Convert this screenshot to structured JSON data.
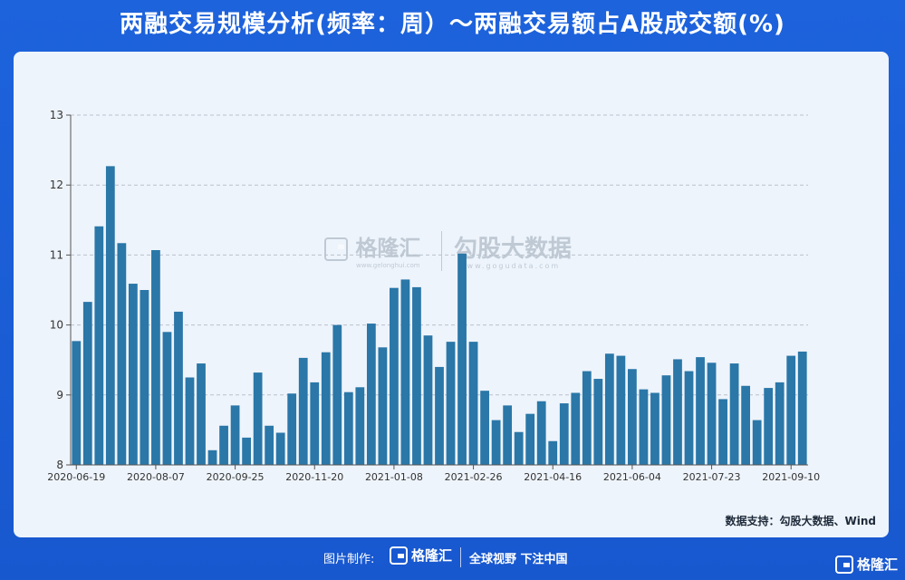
{
  "header": {
    "title": "两融交易规模分析(频率：周）～两融交易额占A股成交额(%)"
  },
  "watermark": {
    "brand1": "格隆汇",
    "brand1_sub": "www.gelonghui.com",
    "brand2": "勾股大数据",
    "brand2_sub": "www.gogudata.com"
  },
  "source": "数据支持：勾股大数据、Wind",
  "footer": {
    "made_by": "图片制作:",
    "brand": "格隆汇",
    "slogan": "全球视野 下注中国",
    "corner_brand": "格隆汇"
  },
  "colors": {
    "bar": "#2a77a8",
    "background": "#1a5fd6",
    "panel": "#eef4fb"
  },
  "chart_data": {
    "type": "bar",
    "title": "",
    "xlabel": "",
    "ylabel": "",
    "ylim": [
      8,
      13
    ],
    "yticks": [
      "8",
      "9",
      "10",
      "11",
      "12",
      "13"
    ],
    "grid": true,
    "xtick_labels": [
      "2020-06-19",
      "2020-08-07",
      "2020-09-25",
      "2020-11-20",
      "2021-01-08",
      "2021-02-26",
      "2021-04-16",
      "2021-06-04",
      "2021-07-23",
      "2021-09-10"
    ],
    "xtick_indices": [
      0,
      7,
      14,
      21,
      28,
      35,
      42,
      49,
      56,
      63
    ],
    "values": [
      9.77,
      10.33,
      11.41,
      12.27,
      11.17,
      10.59,
      10.5,
      11.07,
      9.9,
      10.19,
      9.25,
      9.45,
      8.21,
      8.56,
      8.85,
      8.39,
      9.32,
      8.56,
      8.46,
      9.02,
      9.53,
      9.18,
      9.61,
      10.0,
      9.04,
      9.11,
      10.02,
      9.68,
      10.53,
      10.65,
      10.54,
      9.85,
      9.4,
      9.76,
      11.02,
      9.76,
      9.06,
      8.64,
      8.85,
      8.47,
      8.73,
      8.91,
      8.34,
      8.88,
      9.03,
      9.34,
      9.23,
      9.59,
      9.56,
      9.37,
      9.08,
      9.03,
      9.28,
      9.51,
      9.34,
      9.54,
      9.46,
      8.94,
      9.45,
      9.13,
      8.64,
      9.1,
      9.18,
      9.56,
      9.62
    ]
  }
}
